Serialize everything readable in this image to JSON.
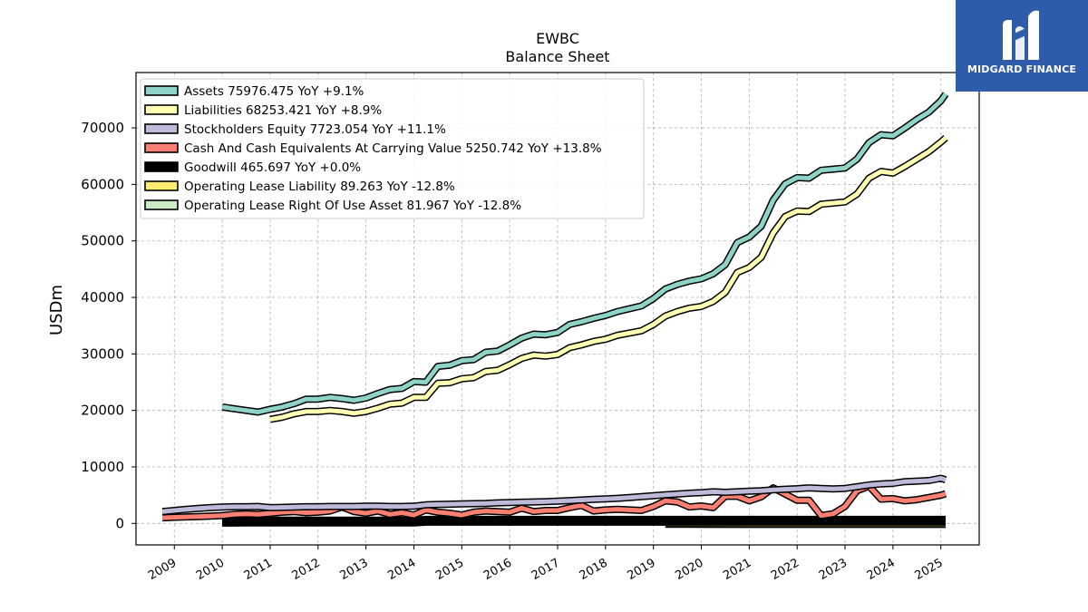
{
  "chart_data": {
    "type": "line",
    "title": "EWBC",
    "subtitle": "Balance  Sheet",
    "xlabel": "",
    "ylabel": "USDm",
    "xlim": [
      2008.2,
      2025.8
    ],
    "ylim": [
      -3800,
      79800
    ],
    "yticks": [
      0,
      10000,
      20000,
      30000,
      40000,
      50000,
      60000,
      70000
    ],
    "ytick_labels": [
      "0",
      "10000",
      "20000",
      "30000",
      "40000",
      "50000",
      "60000",
      "70000"
    ],
    "xticks": [
      2009,
      2010,
      2011,
      2012,
      2013,
      2014,
      2015,
      2016,
      2017,
      2018,
      2019,
      2020,
      2021,
      2022,
      2023,
      2024,
      2025
    ],
    "xtick_labels": [
      "2009",
      "2010",
      "2011",
      "2012",
      "2013",
      "2014",
      "2015",
      "2016",
      "2017",
      "2018",
      "2019",
      "2020",
      "2021",
      "2022",
      "2023",
      "2024",
      "2025"
    ],
    "grid": true,
    "legend_position": "upper-left",
    "series": [
      {
        "name": "Assets  75976.475 YoY +9.1%",
        "color": "#8dd3c7",
        "points": [
          [
            2010.0,
            20600
          ],
          [
            2010.25,
            20300
          ],
          [
            2010.5,
            20000
          ],
          [
            2010.75,
            19700
          ],
          [
            2011.0,
            20200
          ],
          [
            2011.25,
            20600
          ],
          [
            2011.5,
            21200
          ],
          [
            2011.75,
            22000
          ],
          [
            2012.0,
            22000
          ],
          [
            2012.25,
            22300
          ],
          [
            2012.5,
            22100
          ],
          [
            2012.75,
            21800
          ],
          [
            2013.0,
            22200
          ],
          [
            2013.25,
            23000
          ],
          [
            2013.5,
            23700
          ],
          [
            2013.75,
            23900
          ],
          [
            2014.0,
            25100
          ],
          [
            2014.25,
            25000
          ],
          [
            2014.5,
            27800
          ],
          [
            2014.75,
            28000
          ],
          [
            2015.0,
            28800
          ],
          [
            2015.25,
            29000
          ],
          [
            2015.5,
            30300
          ],
          [
            2015.75,
            30500
          ],
          [
            2016.0,
            31600
          ],
          [
            2016.25,
            32800
          ],
          [
            2016.5,
            33500
          ],
          [
            2016.75,
            33400
          ],
          [
            2017.0,
            33800
          ],
          [
            2017.25,
            35200
          ],
          [
            2017.5,
            35700
          ],
          [
            2017.75,
            36300
          ],
          [
            2018.0,
            36800
          ],
          [
            2018.25,
            37500
          ],
          [
            2018.5,
            38000
          ],
          [
            2018.75,
            38500
          ],
          [
            2019.0,
            39800
          ],
          [
            2019.25,
            41500
          ],
          [
            2019.5,
            42300
          ],
          [
            2019.75,
            42900
          ],
          [
            2020.0,
            43300
          ],
          [
            2020.25,
            44200
          ],
          [
            2020.5,
            45800
          ],
          [
            2020.75,
            49700
          ],
          [
            2021.0,
            50700
          ],
          [
            2021.25,
            52600
          ],
          [
            2021.5,
            57200
          ],
          [
            2021.75,
            60100
          ],
          [
            2022.0,
            61200
          ],
          [
            2022.25,
            61100
          ],
          [
            2022.5,
            62500
          ],
          [
            2022.75,
            62700
          ],
          [
            2023.0,
            62900
          ],
          [
            2023.25,
            64500
          ],
          [
            2023.5,
            67400
          ],
          [
            2023.75,
            68800
          ],
          [
            2024.0,
            68600
          ],
          [
            2024.25,
            70000
          ],
          [
            2024.5,
            71500
          ],
          [
            2024.75,
            72800
          ],
          [
            2025.0,
            74800
          ],
          [
            2025.1,
            76000
          ]
        ]
      },
      {
        "name": "Liabilities  68253.421 YoY +8.9%",
        "color": "#ffffb3",
        "points": [
          [
            2011.0,
            18400
          ],
          [
            2011.25,
            18800
          ],
          [
            2011.5,
            19400
          ],
          [
            2011.75,
            19800
          ],
          [
            2012.0,
            19800
          ],
          [
            2012.25,
            20000
          ],
          [
            2012.5,
            19800
          ],
          [
            2012.75,
            19500
          ],
          [
            2013.0,
            19800
          ],
          [
            2013.25,
            20400
          ],
          [
            2013.5,
            21100
          ],
          [
            2013.75,
            21300
          ],
          [
            2014.0,
            22300
          ],
          [
            2014.25,
            22300
          ],
          [
            2014.5,
            24800
          ],
          [
            2014.75,
            24900
          ],
          [
            2015.0,
            25600
          ],
          [
            2015.25,
            25800
          ],
          [
            2015.5,
            26900
          ],
          [
            2015.75,
            27100
          ],
          [
            2016.0,
            28100
          ],
          [
            2016.25,
            29200
          ],
          [
            2016.5,
            29800
          ],
          [
            2016.75,
            29600
          ],
          [
            2017.0,
            29900
          ],
          [
            2017.25,
            31100
          ],
          [
            2017.5,
            31600
          ],
          [
            2017.75,
            32200
          ],
          [
            2018.0,
            32600
          ],
          [
            2018.25,
            33300
          ],
          [
            2018.5,
            33700
          ],
          [
            2018.75,
            34100
          ],
          [
            2019.0,
            35200
          ],
          [
            2019.25,
            36700
          ],
          [
            2019.5,
            37500
          ],
          [
            2019.75,
            38100
          ],
          [
            2020.0,
            38400
          ],
          [
            2020.25,
            39300
          ],
          [
            2020.5,
            40900
          ],
          [
            2020.75,
            44400
          ],
          [
            2021.0,
            45300
          ],
          [
            2021.25,
            47100
          ],
          [
            2021.5,
            51400
          ],
          [
            2021.75,
            54300
          ],
          [
            2022.0,
            55300
          ],
          [
            2022.25,
            55200
          ],
          [
            2022.5,
            56500
          ],
          [
            2022.75,
            56700
          ],
          [
            2023.0,
            56900
          ],
          [
            2023.25,
            58300
          ],
          [
            2023.5,
            61100
          ],
          [
            2023.75,
            62300
          ],
          [
            2024.0,
            62000
          ],
          [
            2024.25,
            63200
          ],
          [
            2024.5,
            64500
          ],
          [
            2024.75,
            65800
          ],
          [
            2025.0,
            67500
          ],
          [
            2025.1,
            68250
          ]
        ]
      },
      {
        "name": "Stockholders Equity  7723.054 YoY +11.1%",
        "color": "#bebada",
        "points": [
          [
            2008.75,
            2100
          ],
          [
            2009.0,
            2300
          ],
          [
            2009.25,
            2500
          ],
          [
            2009.5,
            2650
          ],
          [
            2009.75,
            2800
          ],
          [
            2010.0,
            2900
          ],
          [
            2010.25,
            2950
          ],
          [
            2010.5,
            2950
          ],
          [
            2010.75,
            3000
          ],
          [
            2011.0,
            2800
          ],
          [
            2011.25,
            2850
          ],
          [
            2011.5,
            2900
          ],
          [
            2011.75,
            2950
          ],
          [
            2012.0,
            2950
          ],
          [
            2012.25,
            3000
          ],
          [
            2012.5,
            3000
          ],
          [
            2012.75,
            3000
          ],
          [
            2013.0,
            3050
          ],
          [
            2013.25,
            3050
          ],
          [
            2013.5,
            3000
          ],
          [
            2013.75,
            3000
          ],
          [
            2014.0,
            3050
          ],
          [
            2014.25,
            3300
          ],
          [
            2014.5,
            3350
          ],
          [
            2014.75,
            3400
          ],
          [
            2015.0,
            3450
          ],
          [
            2015.25,
            3500
          ],
          [
            2015.5,
            3550
          ],
          [
            2015.75,
            3650
          ],
          [
            2016.0,
            3700
          ],
          [
            2016.25,
            3750
          ],
          [
            2016.5,
            3800
          ],
          [
            2016.75,
            3850
          ],
          [
            2017.0,
            3950
          ],
          [
            2017.25,
            4050
          ],
          [
            2017.5,
            4150
          ],
          [
            2017.75,
            4250
          ],
          [
            2018.0,
            4350
          ],
          [
            2018.25,
            4450
          ],
          [
            2018.5,
            4600
          ],
          [
            2018.75,
            4750
          ],
          [
            2019.0,
            4900
          ],
          [
            2019.25,
            5050
          ],
          [
            2019.5,
            5200
          ],
          [
            2019.75,
            5350
          ],
          [
            2020.0,
            5450
          ],
          [
            2020.25,
            5600
          ],
          [
            2020.5,
            5500
          ],
          [
            2020.75,
            5600
          ],
          [
            2021.0,
            5700
          ],
          [
            2021.25,
            5800
          ],
          [
            2021.5,
            5950
          ],
          [
            2021.75,
            6050
          ],
          [
            2022.0,
            6150
          ],
          [
            2022.25,
            6300
          ],
          [
            2022.5,
            6200
          ],
          [
            2022.75,
            6100
          ],
          [
            2023.0,
            6200
          ],
          [
            2023.25,
            6500
          ],
          [
            2023.5,
            6800
          ],
          [
            2023.75,
            7000
          ],
          [
            2024.0,
            7100
          ],
          [
            2024.25,
            7400
          ],
          [
            2024.5,
            7500
          ],
          [
            2024.75,
            7600
          ],
          [
            2025.0,
            8000
          ],
          [
            2025.1,
            7723
          ]
        ]
      },
      {
        "name": "Cash And Cash Equivalents At Carrying Value  5250.742 YoY +13.8%",
        "color": "#fb8072",
        "points": [
          [
            2008.75,
            1000
          ],
          [
            2009.0,
            1100
          ],
          [
            2009.5,
            1200
          ],
          [
            2009.75,
            1300
          ],
          [
            2010.0,
            1400
          ],
          [
            2010.25,
            1600
          ],
          [
            2010.5,
            1700
          ],
          [
            2010.75,
            1600
          ],
          [
            2011.0,
            1800
          ],
          [
            2011.25,
            2000
          ],
          [
            2011.5,
            2100
          ],
          [
            2011.75,
            1900
          ],
          [
            2012.0,
            2000
          ],
          [
            2012.25,
            2200
          ],
          [
            2012.5,
            2900
          ],
          [
            2012.75,
            2100
          ],
          [
            2013.0,
            1800
          ],
          [
            2013.25,
            2200
          ],
          [
            2013.5,
            1600
          ],
          [
            2013.75,
            1900
          ],
          [
            2014.0,
            1500
          ],
          [
            2014.25,
            2400
          ],
          [
            2014.5,
            2000
          ],
          [
            2014.75,
            1800
          ],
          [
            2015.0,
            1500
          ],
          [
            2015.25,
            2000
          ],
          [
            2015.5,
            2200
          ],
          [
            2015.75,
            2100
          ],
          [
            2016.0,
            2000
          ],
          [
            2016.25,
            2700
          ],
          [
            2016.5,
            2100
          ],
          [
            2016.75,
            2300
          ],
          [
            2017.0,
            2300
          ],
          [
            2017.25,
            2800
          ],
          [
            2017.5,
            3200
          ],
          [
            2017.75,
            2200
          ],
          [
            2018.0,
            2400
          ],
          [
            2018.25,
            2500
          ],
          [
            2018.5,
            2400
          ],
          [
            2018.75,
            2300
          ],
          [
            2019.0,
            3000
          ],
          [
            2019.25,
            4000
          ],
          [
            2019.5,
            3800
          ],
          [
            2019.75,
            2900
          ],
          [
            2020.0,
            3100
          ],
          [
            2020.25,
            2800
          ],
          [
            2020.5,
            4800
          ],
          [
            2020.75,
            4800
          ],
          [
            2021.0,
            4000
          ],
          [
            2021.25,
            4700
          ],
          [
            2021.5,
            6300
          ],
          [
            2021.75,
            5200
          ],
          [
            2022.0,
            4100
          ],
          [
            2022.25,
            4100
          ],
          [
            2022.5,
            1400
          ],
          [
            2022.75,
            1700
          ],
          [
            2023.0,
            3000
          ],
          [
            2023.25,
            5800
          ],
          [
            2023.5,
            6600
          ],
          [
            2023.75,
            4300
          ],
          [
            2024.0,
            4400
          ],
          [
            2024.25,
            4000
          ],
          [
            2024.5,
            4200
          ],
          [
            2024.75,
            4600
          ],
          [
            2025.0,
            5000
          ],
          [
            2025.1,
            5250
          ]
        ]
      },
      {
        "name": "Goodwill  465.697 YoY +0.0%",
        "color": "#000000",
        "points": [
          [
            2010.0,
            300
          ],
          [
            2010.5,
            340
          ],
          [
            2011.0,
            340
          ],
          [
            2012.0,
            340
          ],
          [
            2013.0,
            340
          ],
          [
            2014.0,
            340
          ],
          [
            2014.25,
            470
          ],
          [
            2015.0,
            470
          ],
          [
            2016.0,
            470
          ],
          [
            2017.0,
            470
          ],
          [
            2018.0,
            470
          ],
          [
            2019.0,
            466
          ],
          [
            2020.0,
            466
          ],
          [
            2021.0,
            466
          ],
          [
            2022.0,
            466
          ],
          [
            2023.0,
            466
          ],
          [
            2024.0,
            466
          ],
          [
            2025.1,
            466
          ]
        ]
      },
      {
        "name": "Operating Lease Liability  89.263 YoY -12.8%",
        "color": "#ffed6f",
        "points": [
          [
            2019.25,
            120
          ],
          [
            2020.0,
            110
          ],
          [
            2021.0,
            105
          ],
          [
            2022.0,
            100
          ],
          [
            2023.0,
            95
          ],
          [
            2024.0,
            92
          ],
          [
            2025.1,
            89
          ]
        ]
      },
      {
        "name": "Operating Lease Right Of Use Asset  81.967 YoY -12.8%",
        "color": "#ccebc5",
        "points": [
          [
            2019.25,
            110
          ],
          [
            2020.0,
            100
          ],
          [
            2021.0,
            95
          ],
          [
            2022.0,
            90
          ],
          [
            2023.0,
            87
          ],
          [
            2024.0,
            85
          ],
          [
            2025.1,
            82
          ]
        ]
      }
    ]
  },
  "logo": {
    "text": "MIDGARD FINANCE",
    "background": "#2e5ca8",
    "icon": "midgard-mark-icon"
  }
}
